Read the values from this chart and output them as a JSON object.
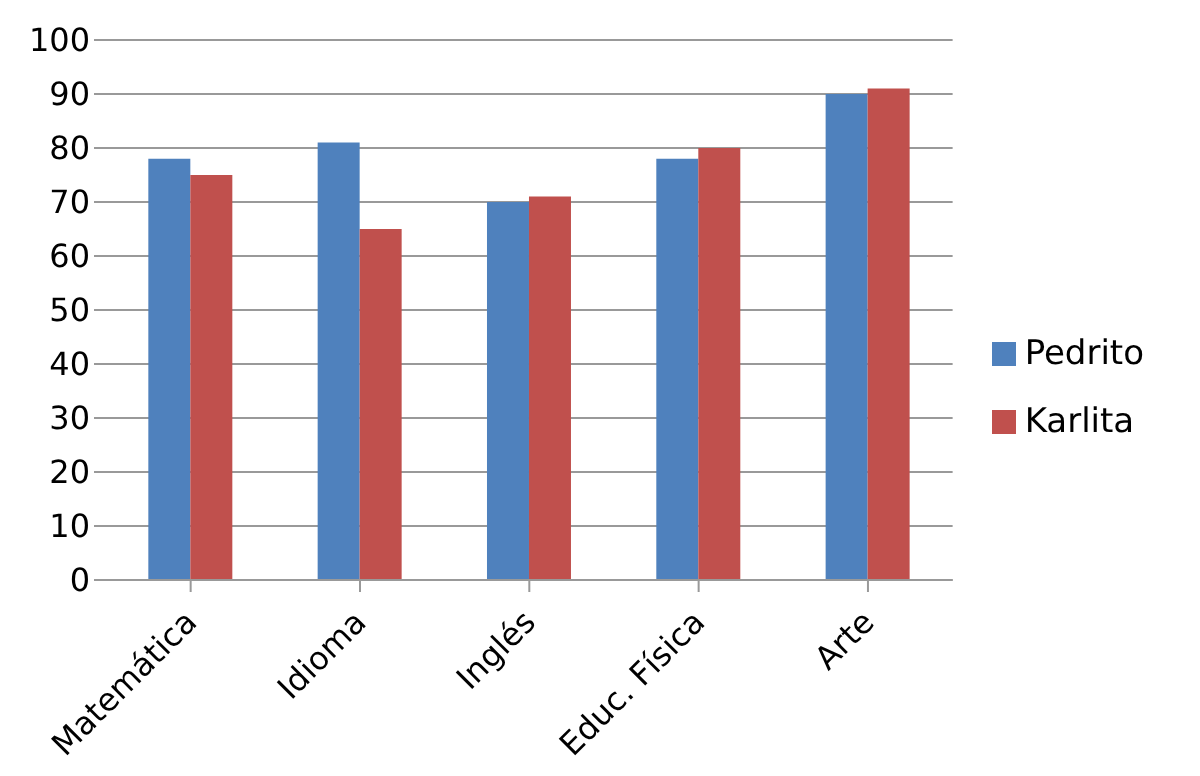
{
  "chart_data": {
    "type": "bar",
    "categories": [
      "Matemática",
      "Idioma",
      "Inglés",
      "Educ. Física",
      "Arte"
    ],
    "series": [
      {
        "name": "Pedrito",
        "color": "#4f81bd",
        "values": [
          78,
          81,
          70,
          78,
          90
        ]
      },
      {
        "name": "Karlita",
        "color": "#c0504d",
        "values": [
          75,
          65,
          71,
          80,
          91
        ]
      }
    ],
    "ylim": [
      0,
      100
    ],
    "yticks": [
      0,
      10,
      20,
      30,
      40,
      50,
      60,
      70,
      80,
      90,
      100
    ],
    "grid": "y",
    "legend": "right"
  }
}
